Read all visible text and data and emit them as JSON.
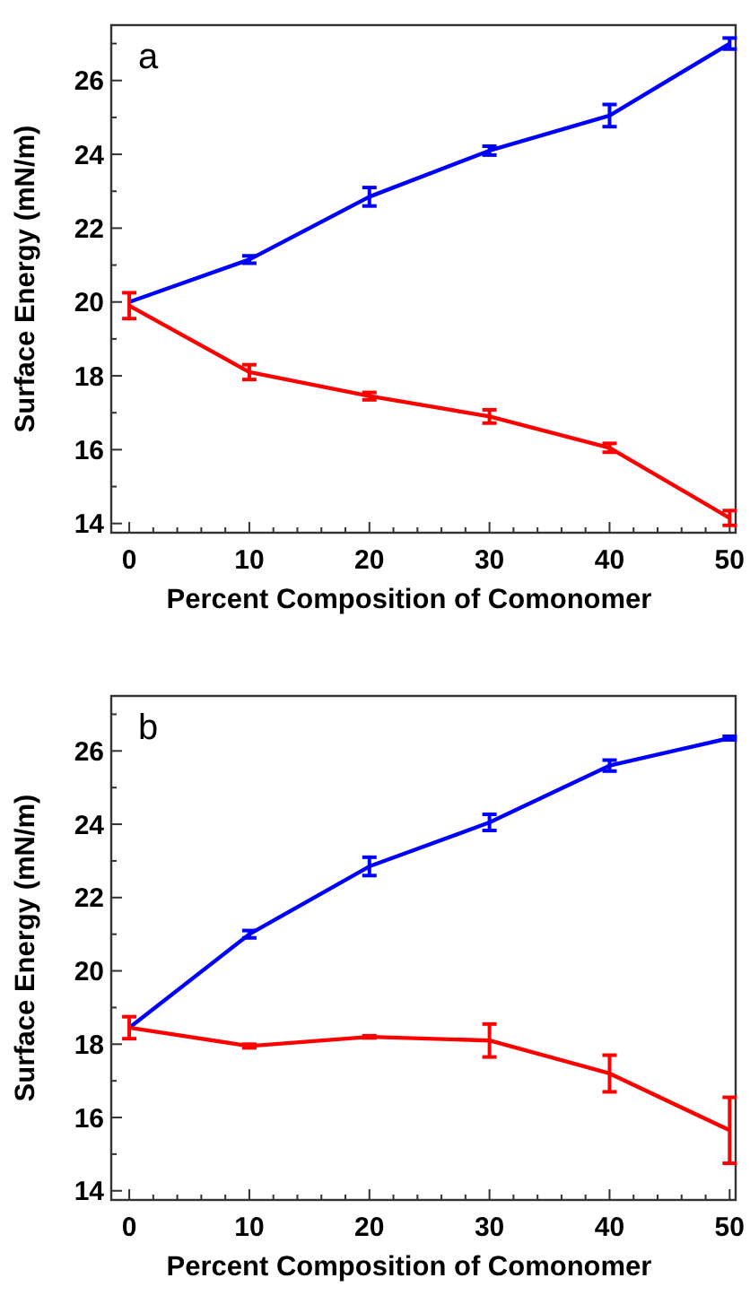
{
  "chart_data": [
    {
      "type": "line",
      "annotations": [
        "a"
      ],
      "xlabel": "Percent Composition of Comonomer",
      "ylabel": "Surface Energy (mN/m)",
      "x": [
        0,
        10,
        20,
        30,
        40,
        50
      ],
      "xlim": [
        -1.5,
        50.5
      ],
      "ylim": [
        13.75,
        27.5
      ],
      "xticks": [
        0,
        {
          "value": 2,
          "label": null
        },
        {
          "value": 4,
          "label": null
        },
        {
          "value": 6,
          "label": null
        },
        {
          "value": 8,
          "label": null
        },
        10,
        {
          "value": 12,
          "label": null
        },
        {
          "value": 14,
          "label": null
        },
        {
          "value": 16,
          "label": null
        },
        {
          "value": 18,
          "label": null
        },
        20,
        {
          "value": 22,
          "label": null
        },
        {
          "value": 24,
          "label": null
        },
        {
          "value": 26,
          "label": null
        },
        {
          "value": 28,
          "label": null
        },
        30,
        {
          "value": 32,
          "label": null
        },
        {
          "value": 34,
          "label": null
        },
        {
          "value": 36,
          "label": null
        },
        {
          "value": 38,
          "label": null
        },
        40,
        {
          "value": 42,
          "label": null
        },
        {
          "value": 44,
          "label": null
        },
        {
          "value": 46,
          "label": null
        },
        {
          "value": 48,
          "label": null
        },
        50
      ],
      "yticks": [
        14,
        {
          "value": 15,
          "label": null
        },
        16,
        {
          "value": 17,
          "label": null
        },
        18,
        {
          "value": 19,
          "label": null
        },
        20,
        {
          "value": 21,
          "label": null
        },
        22,
        {
          "value": 23,
          "label": null
        },
        24,
        {
          "value": 25,
          "label": null
        },
        26,
        {
          "value": 27,
          "label": null
        }
      ],
      "grid": false,
      "marker": "none",
      "line_style": "solid",
      "series": [
        {
          "color": "#0000ff",
          "values": [
            20.0,
            21.15,
            22.85,
            24.1,
            25.05,
            27.0
          ],
          "errors": [
            null,
            0.1,
            0.25,
            0.12,
            0.3,
            0.15
          ]
        },
        {
          "color": "#ff0000",
          "values": [
            19.9,
            18.1,
            17.45,
            16.9,
            16.05,
            14.15
          ],
          "errors": [
            0.35,
            0.2,
            0.1,
            0.18,
            0.12,
            0.2
          ]
        }
      ]
    },
    {
      "type": "line",
      "annotations": [
        "b"
      ],
      "xlabel": "Percent Composition of Comonomer",
      "ylabel": "Surface Energy (mN/m)",
      "x": [
        0,
        10,
        20,
        30,
        40,
        50
      ],
      "xlim": [
        -1.5,
        50.5
      ],
      "ylim": [
        13.75,
        27.5
      ],
      "xticks": [
        0,
        {
          "value": 2,
          "label": null
        },
        {
          "value": 4,
          "label": null
        },
        {
          "value": 6,
          "label": null
        },
        {
          "value": 8,
          "label": null
        },
        10,
        {
          "value": 12,
          "label": null
        },
        {
          "value": 14,
          "label": null
        },
        {
          "value": 16,
          "label": null
        },
        {
          "value": 18,
          "label": null
        },
        20,
        {
          "value": 22,
          "label": null
        },
        {
          "value": 24,
          "label": null
        },
        {
          "value": 26,
          "label": null
        },
        {
          "value": 28,
          "label": null
        },
        30,
        {
          "value": 32,
          "label": null
        },
        {
          "value": 34,
          "label": null
        },
        {
          "value": 36,
          "label": null
        },
        {
          "value": 38,
          "label": null
        },
        40,
        {
          "value": 42,
          "label": null
        },
        {
          "value": 44,
          "label": null
        },
        {
          "value": 46,
          "label": null
        },
        {
          "value": 48,
          "label": null
        },
        50
      ],
      "yticks": [
        14,
        {
          "value": 15,
          "label": null
        },
        16,
        {
          "value": 17,
          "label": null
        },
        18,
        {
          "value": 19,
          "label": null
        },
        20,
        {
          "value": 21,
          "label": null
        },
        22,
        {
          "value": 23,
          "label": null
        },
        24,
        {
          "value": 25,
          "label": null
        },
        26,
        {
          "value": 27,
          "label": null
        }
      ],
      "grid": false,
      "marker": "none",
      "line_style": "solid",
      "series": [
        {
          "color": "#0000ff",
          "values": [
            18.45,
            21.0,
            22.85,
            24.05,
            25.6,
            26.35
          ],
          "errors": [
            null,
            0.1,
            0.25,
            0.22,
            0.15,
            0.05
          ]
        },
        {
          "color": "#ff0000",
          "values": [
            18.45,
            17.95,
            18.2,
            18.1,
            17.2,
            15.65
          ],
          "errors": [
            0.3,
            0.05,
            0.03,
            0.45,
            0.5,
            0.9
          ]
        }
      ]
    }
  ]
}
